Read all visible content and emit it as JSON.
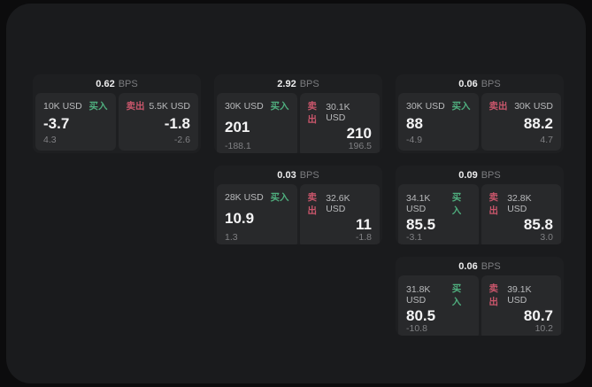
{
  "labels": {
    "bps_unit": "BPS",
    "buy": "买入",
    "sell": "卖出"
  },
  "colors": {
    "container_bg": "#1a1b1d",
    "card_bg": "#1e1f21",
    "panel_bg": "#28292b",
    "buy_green": "#4fae7e",
    "sell_red": "#c9566b"
  },
  "cards": [
    {
      "bps": "0.62",
      "buy": {
        "amount": "10K USD",
        "price": "-3.7",
        "change": "4.3"
      },
      "sell": {
        "amount": "5.5K USD",
        "price": "-1.8",
        "change": "-2.6"
      }
    },
    {
      "bps": "2.92",
      "buy": {
        "amount": "30K USD",
        "price": "201",
        "change": "-188.1"
      },
      "sell": {
        "amount": "30.1K USD",
        "price": "210",
        "change": "196.5"
      }
    },
    {
      "bps": "0.06",
      "buy": {
        "amount": "30K USD",
        "price": "88",
        "change": "-4.9"
      },
      "sell": {
        "amount": "30K USD",
        "price": "88.2",
        "change": "4.7"
      }
    },
    {
      "bps": "0.03",
      "buy": {
        "amount": "28K USD",
        "price": "10.9",
        "change": "1.3"
      },
      "sell": {
        "amount": "32.6K USD",
        "price": "11",
        "change": "-1.8"
      }
    },
    {
      "bps": "0.09",
      "buy": {
        "amount": "34.1K USD",
        "price": "85.5",
        "change": "-3.1"
      },
      "sell": {
        "amount": "32.8K USD",
        "price": "85.8",
        "change": "3.0"
      }
    },
    {
      "bps": "0.06",
      "buy": {
        "amount": "31.8K USD",
        "price": "80.5",
        "change": "-10.8"
      },
      "sell": {
        "amount": "39.1K USD",
        "price": "80.7",
        "change": "10.2"
      }
    }
  ]
}
